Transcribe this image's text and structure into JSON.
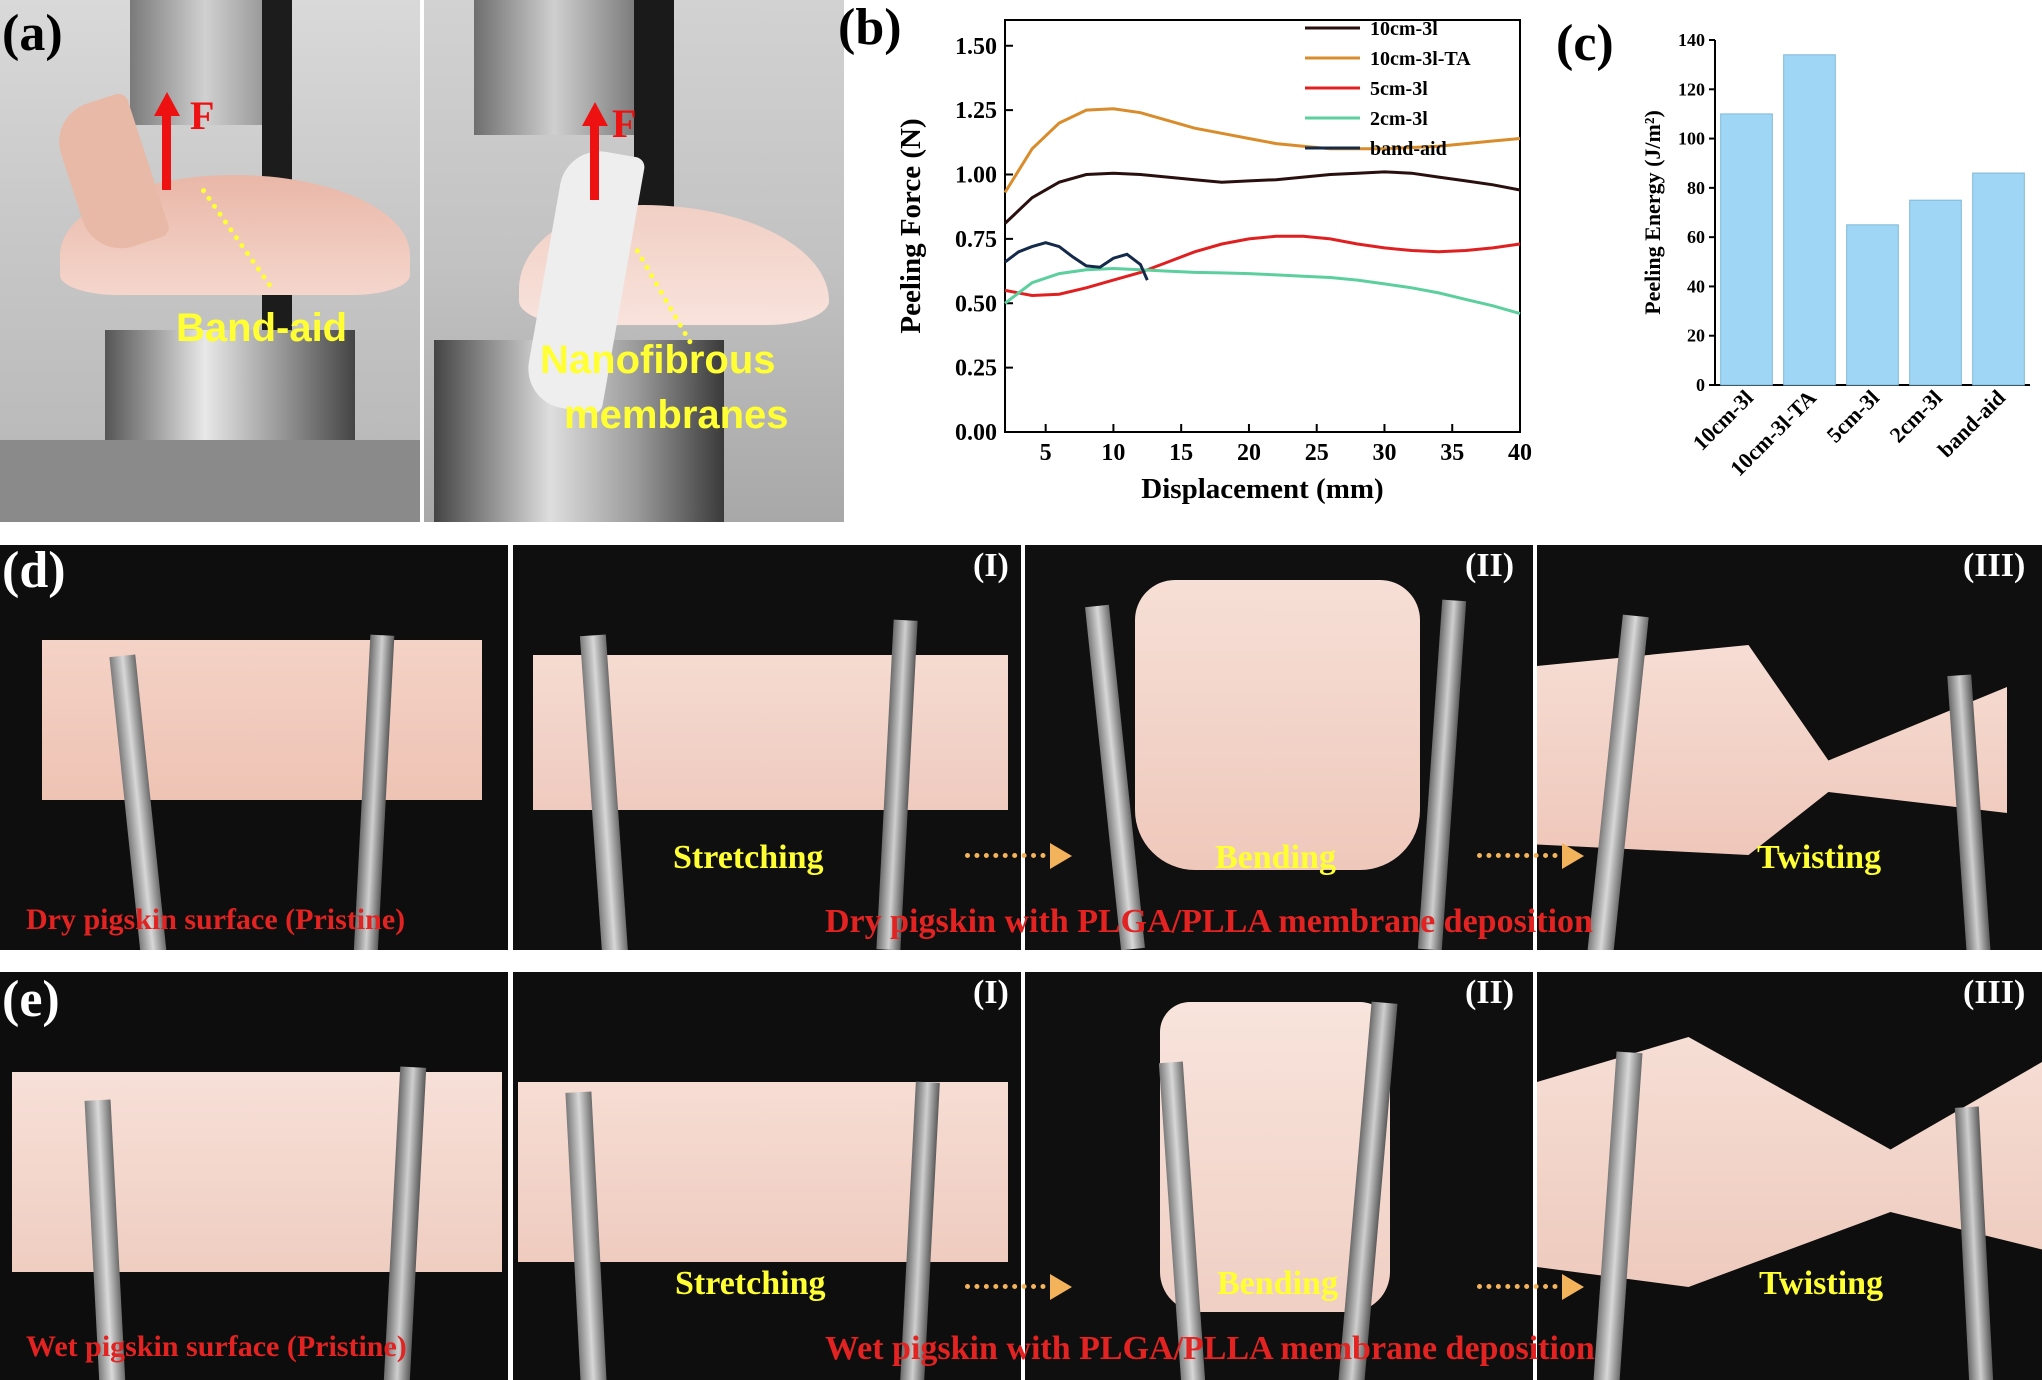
{
  "panels": {
    "a": {
      "letter": "(a)",
      "force_label": "F",
      "label_band_aid": "Band-aid",
      "label_nanofibrous_line1": "Nanofibrous",
      "label_nanofibrous_line2": "membranes"
    },
    "b": {
      "letter": "(b)"
    },
    "c": {
      "letter": "(c)"
    },
    "d": {
      "letter": "(d)",
      "roman": [
        "(I)",
        "(II)",
        "(III)"
      ],
      "actions": [
        "Stretching",
        "Bending",
        "Twisting"
      ],
      "caption_pristine": "Dry pigskin surface (Pristine)",
      "caption_deposition": "Dry pigskin with PLGA/PLLA membrane deposition"
    },
    "e": {
      "letter": "(e)",
      "roman": [
        "(I)",
        "(II)",
        "(III)"
      ],
      "actions": [
        "Stretching",
        "Bending",
        "Twisting"
      ],
      "caption_pristine": "Wet pigskin surface (Pristine)",
      "caption_deposition": "Wet pigskin with PLGA/PLLA membrane deposition"
    }
  },
  "chart_data": [
    {
      "type": "line",
      "panel": "b",
      "xlabel": "Displacement (mm)",
      "ylabel": "Peeling Force (N)",
      "xlim": [
        2,
        40
      ],
      "ylim": [
        0,
        1.6
      ],
      "x_ticks": [
        5,
        10,
        15,
        20,
        25,
        30,
        35,
        40
      ],
      "y_ticks": [
        "0.00",
        "0.25",
        "0.50",
        "0.75",
        "1.00",
        "1.25",
        "1.50"
      ],
      "legend_position": "top-right",
      "series": [
        {
          "name": "10cm-3l",
          "color": "#2a0f0f",
          "x": [
            2,
            4,
            6,
            8,
            10,
            12,
            14,
            16,
            18,
            20,
            22,
            24,
            26,
            28,
            30,
            32,
            34,
            36,
            38,
            40
          ],
          "y": [
            0.81,
            0.91,
            0.97,
            1.0,
            1.005,
            1.0,
            0.99,
            0.98,
            0.97,
            0.975,
            0.98,
            0.99,
            1.0,
            1.005,
            1.01,
            1.005,
            0.99,
            0.975,
            0.96,
            0.94
          ]
        },
        {
          "name": "10cm-3l-TA",
          "color": "#d98c2b",
          "x": [
            2,
            4,
            6,
            8,
            10,
            12,
            14,
            16,
            18,
            20,
            22,
            24,
            26,
            28,
            30,
            32,
            34,
            36,
            38,
            40
          ],
          "y": [
            0.93,
            1.1,
            1.2,
            1.25,
            1.255,
            1.24,
            1.21,
            1.18,
            1.16,
            1.14,
            1.12,
            1.11,
            1.1,
            1.1,
            1.1,
            1.105,
            1.11,
            1.12,
            1.13,
            1.14
          ]
        },
        {
          "name": "5cm-3l",
          "color": "#e02020",
          "x": [
            2,
            4,
            6,
            8,
            10,
            12,
            14,
            16,
            18,
            20,
            22,
            24,
            26,
            28,
            30,
            32,
            34,
            36,
            38,
            40
          ],
          "y": [
            0.55,
            0.53,
            0.535,
            0.56,
            0.59,
            0.62,
            0.66,
            0.7,
            0.73,
            0.75,
            0.76,
            0.76,
            0.75,
            0.73,
            0.715,
            0.705,
            0.7,
            0.705,
            0.715,
            0.73
          ]
        },
        {
          "name": "2cm-3l",
          "color": "#5ccf9e",
          "x": [
            2,
            4,
            6,
            8,
            10,
            12,
            14,
            16,
            18,
            20,
            22,
            24,
            26,
            28,
            30,
            32,
            34,
            36,
            38,
            40
          ],
          "y": [
            0.5,
            0.58,
            0.615,
            0.63,
            0.635,
            0.63,
            0.625,
            0.62,
            0.618,
            0.615,
            0.61,
            0.605,
            0.6,
            0.59,
            0.575,
            0.56,
            0.54,
            0.515,
            0.49,
            0.46
          ]
        },
        {
          "name": "band-aid",
          "color": "#142a4a",
          "x": [
            2,
            3,
            4,
            5,
            6,
            7,
            8,
            9,
            10,
            11,
            12,
            12.5
          ],
          "y": [
            0.66,
            0.7,
            0.72,
            0.735,
            0.72,
            0.68,
            0.645,
            0.64,
            0.675,
            0.69,
            0.65,
            0.59
          ]
        }
      ]
    },
    {
      "type": "bar",
      "panel": "c",
      "ylabel": "Peeling Energy (J/m²)",
      "ylim": [
        0,
        140
      ],
      "y_ticks": [
        "0",
        "20",
        "40",
        "60",
        "80",
        "100",
        "120",
        "140"
      ],
      "categories": [
        "10cm-3l",
        "10cm-3l-TA",
        "5cm-3l",
        "2cm-3l",
        "band-aid"
      ],
      "values": [
        110,
        134,
        65,
        75,
        86
      ],
      "bar_color": "#9fd6f5"
    }
  ]
}
